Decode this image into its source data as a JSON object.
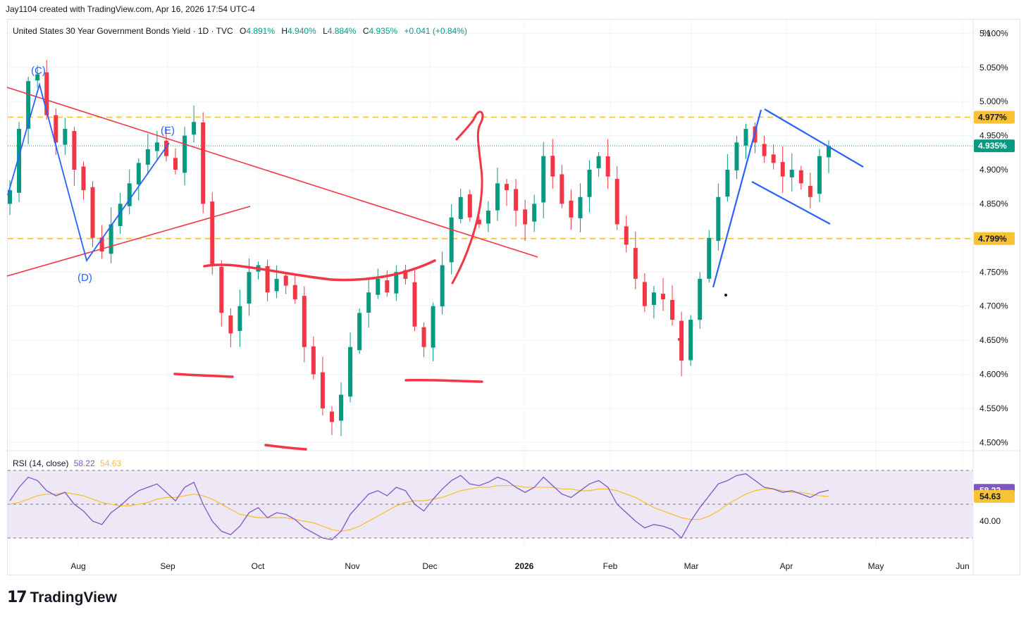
{
  "header": {
    "attribution": "Jay1104 created with TradingView.com, Apr 16, 2026 17:54 UTC-4"
  },
  "legend": {
    "symbol": "United States 30 Year Government Bonds Yield · 1D · TVC",
    "o_label": "O",
    "o_value": "4.891%",
    "h_label": "H",
    "h_value": "4.940%",
    "l_label": "L",
    "l_value": "4.884%",
    "c_label": "C",
    "c_value": "4.935%",
    "change": "+0.041 (+0.84%)"
  },
  "axis_unit": "%",
  "rsi_legend": {
    "name": "RSI (14, close)",
    "rsi": "58.22",
    "ma": "54.63"
  },
  "branding": {
    "name": "TradingView"
  },
  "colors": {
    "up": "#089981",
    "down": "#f23645",
    "drawing_red": "#f23645",
    "drawing_blue": "#2962ff",
    "level": "#f7c234",
    "rsi_line": "#7e57c2",
    "rsi_ma": "#f7c234",
    "rsi_band": "#ede7f6",
    "grid": "#f0f3fa"
  },
  "chart_data": [
    {
      "type": "candlestick",
      "title": "United States 30 Year Government Bonds Yield · 1D · TVC",
      "x_tick_labels": [
        "Aug",
        "Sep",
        "Oct",
        "Nov",
        "Dec",
        "2026",
        "Feb",
        "Mar",
        "Apr",
        "May",
        "Jun"
      ],
      "y_tick_labels": [
        "5.100%",
        "5.050%",
        "5.000%",
        "4.950%",
        "4.900%",
        "4.850%",
        "4.800%",
        "4.750%",
        "4.700%",
        "4.650%",
        "4.600%",
        "4.550%",
        "4.500%"
      ],
      "ylim": [
        4.49,
        5.12
      ],
      "last_close": 4.935,
      "price_labels": [
        {
          "label": "4.977%",
          "value": 4.977,
          "color": "#f7c234"
        },
        {
          "label": "4.935%",
          "value": 4.935,
          "color": "#089981"
        },
        {
          "label": "4.799%",
          "value": 4.799,
          "color": "#f7c234"
        }
      ],
      "horizontal_levels": [
        4.977,
        4.799
      ],
      "wave_labels": [
        "(C)",
        "(D)",
        "(E)"
      ],
      "series": [
        {
          "name": "yield_close_path",
          "values": [
            4.87,
            4.96,
            5.03,
            5.04,
            4.98,
            4.94,
            4.96,
            4.9,
            4.87,
            4.8,
            4.78,
            4.82,
            4.85,
            4.88,
            4.91,
            4.93,
            4.94,
            4.92,
            4.9,
            4.95,
            4.97,
            4.85,
            4.76,
            4.69,
            4.66,
            4.7,
            4.75,
            4.76,
            4.72,
            4.74,
            4.73,
            4.71,
            4.64,
            4.6,
            4.55,
            4.53,
            4.57,
            4.64,
            4.69,
            4.72,
            4.74,
            4.72,
            4.75,
            4.74,
            4.67,
            4.64,
            4.7,
            4.76,
            4.83,
            4.86,
            4.83,
            4.82,
            4.84,
            4.88,
            4.87,
            4.84,
            4.82,
            4.85,
            4.92,
            4.89,
            4.85,
            4.83,
            4.86,
            4.9,
            4.92,
            4.89,
            4.82,
            4.79,
            4.74,
            4.7,
            4.72,
            4.71,
            4.68,
            4.62,
            4.68,
            4.74,
            4.8,
            4.86,
            4.9,
            4.94,
            4.96,
            4.94,
            4.92,
            4.91,
            4.89,
            4.9,
            4.88,
            4.86,
            4.92,
            4.935
          ]
        }
      ]
    },
    {
      "type": "line",
      "title": "RSI (14, close)",
      "y_tick_labels": [
        "40.00"
      ],
      "ylim": [
        25,
        75
      ],
      "last_rsi": 58.22,
      "last_ma": 54.63,
      "series": [
        {
          "name": "RSI",
          "values": [
            52,
            60,
            66,
            64,
            58,
            55,
            57,
            50,
            46,
            40,
            38,
            45,
            49,
            54,
            58,
            60,
            62,
            57,
            52,
            60,
            63,
            50,
            40,
            34,
            32,
            37,
            45,
            48,
            42,
            45,
            44,
            41,
            36,
            33,
            30,
            29,
            34,
            44,
            50,
            56,
            58,
            55,
            60,
            58,
            50,
            46,
            53,
            59,
            64,
            67,
            62,
            61,
            63,
            66,
            64,
            60,
            57,
            60,
            66,
            61,
            56,
            54,
            58,
            62,
            64,
            60,
            50,
            45,
            40,
            36,
            38,
            37,
            35,
            30,
            40,
            48,
            55,
            62,
            64,
            67,
            68,
            64,
            60,
            59,
            57,
            58,
            56,
            54,
            57,
            58.22
          ]
        },
        {
          "name": "MA",
          "values": [
            50,
            51,
            53,
            55,
            56,
            56,
            57,
            56,
            55,
            53,
            51,
            50,
            49,
            49,
            50,
            51,
            53,
            54,
            54,
            55,
            56,
            55,
            53,
            50,
            47,
            44,
            43,
            42,
            42,
            42,
            42,
            41,
            40,
            39,
            37,
            35,
            34,
            35,
            37,
            40,
            43,
            46,
            49,
            51,
            52,
            52,
            53,
            54,
            56,
            58,
            59,
            60,
            60,
            61,
            61,
            61,
            60,
            60,
            60,
            60,
            59,
            59,
            58,
            58,
            59,
            59,
            58,
            56,
            54,
            51,
            48,
            46,
            44,
            42,
            41,
            41,
            43,
            46,
            50,
            53,
            56,
            58,
            59,
            59,
            58,
            57,
            57,
            56,
            55,
            54.63
          ]
        }
      ]
    }
  ]
}
